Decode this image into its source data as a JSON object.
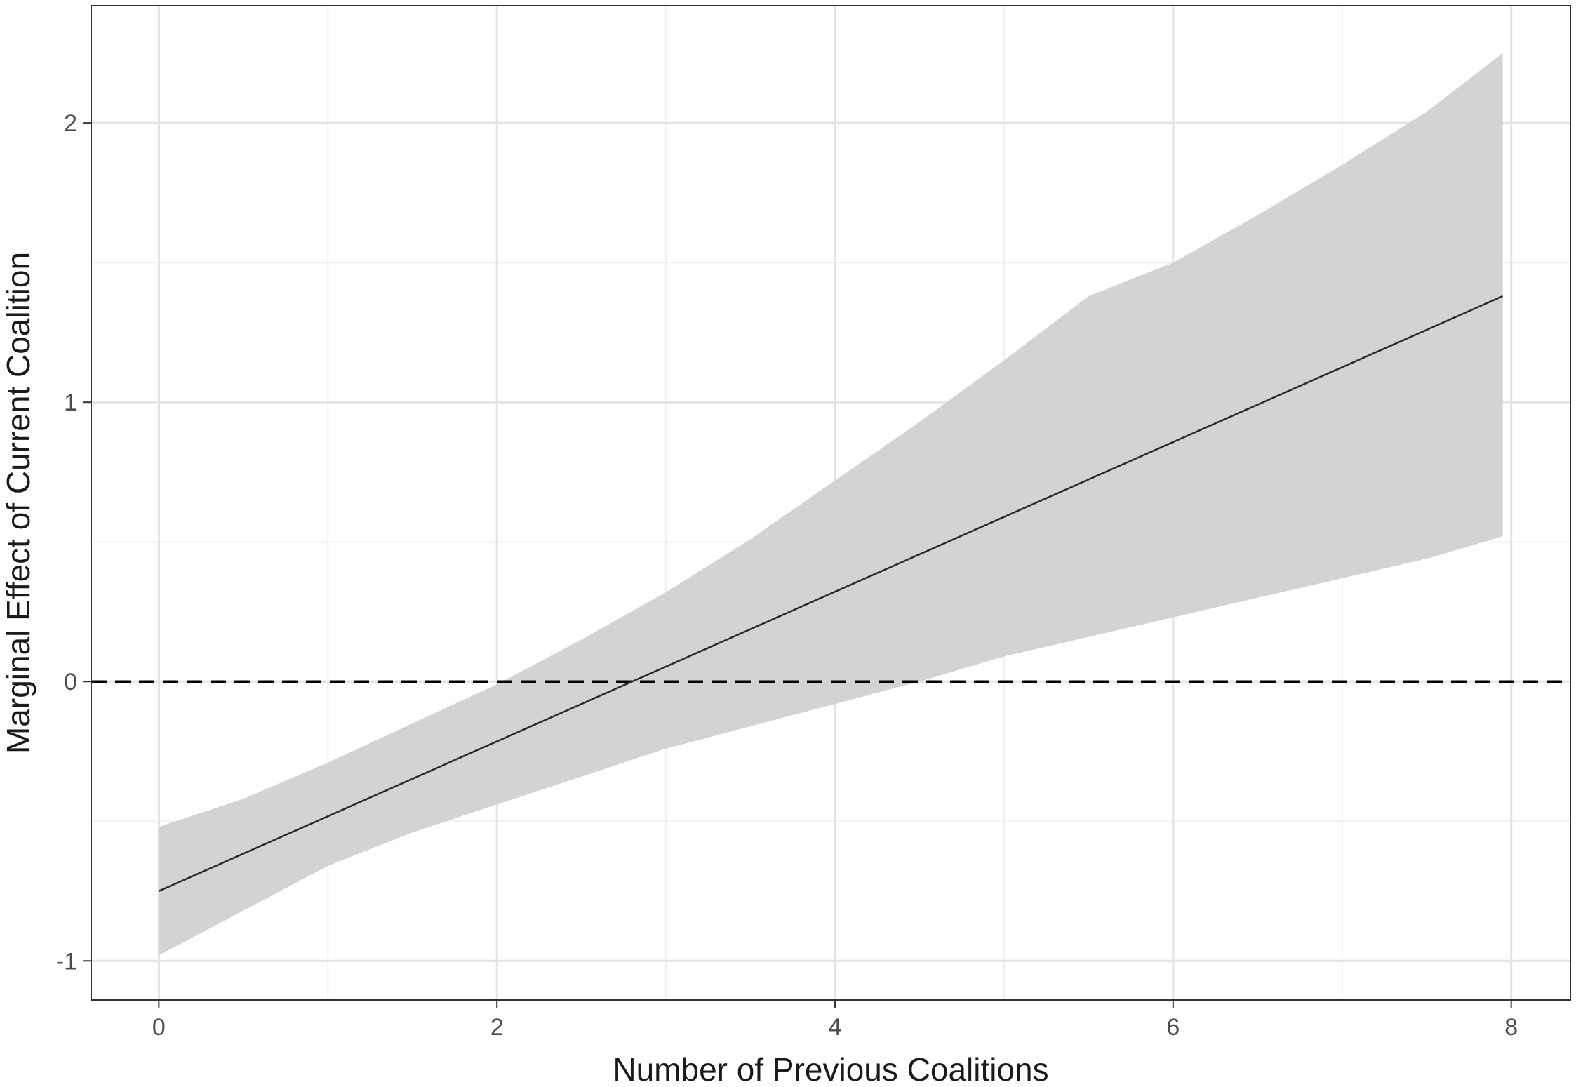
{
  "chart_data": {
    "type": "line",
    "title": "",
    "xlabel": "Number of Previous Coalitions",
    "ylabel": "Marginal Effect of Current Coalition",
    "xlim": [
      -0.4,
      8.35
    ],
    "ylim": [
      -1.14,
      2.42
    ],
    "x_ticks": [
      0,
      2,
      4,
      6,
      8
    ],
    "x_tick_labels": [
      "0",
      "2",
      "4",
      "6",
      "8"
    ],
    "y_ticks": [
      -1,
      0,
      1,
      2
    ],
    "y_tick_labels": [
      "-1",
      "0",
      "1",
      "2"
    ],
    "grid": true,
    "reference_line": {
      "y": 0,
      "style": "dashed"
    },
    "series": [
      {
        "type": "line",
        "x": [
          0,
          7.95
        ],
        "y": [
          -0.75,
          1.38
        ]
      }
    ],
    "confidence_band": {
      "x": [
        0,
        0.5,
        1,
        1.5,
        2,
        2.5,
        3,
        3.5,
        4,
        4.5,
        5,
        5.5,
        6,
        6.5,
        7,
        7.5,
        7.95
      ],
      "upper": [
        -0.52,
        -0.42,
        -0.29,
        -0.15,
        -0.01,
        0.15,
        0.32,
        0.51,
        0.72,
        0.93,
        1.15,
        1.38,
        1.5,
        1.67,
        1.85,
        2.04,
        2.25
      ],
      "lower": [
        -0.98,
        -0.82,
        -0.66,
        -0.54,
        -0.44,
        -0.34,
        -0.24,
        -0.16,
        -0.08,
        0.0,
        0.09,
        0.16,
        0.23,
        0.3,
        0.37,
        0.44,
        0.52
      ]
    },
    "colors": {
      "band": "#d3d3d3",
      "line": "#2a2a2a",
      "grid_major": "#e3e3e3",
      "grid_minor": "#f0f0f0",
      "border": "#333333"
    }
  }
}
